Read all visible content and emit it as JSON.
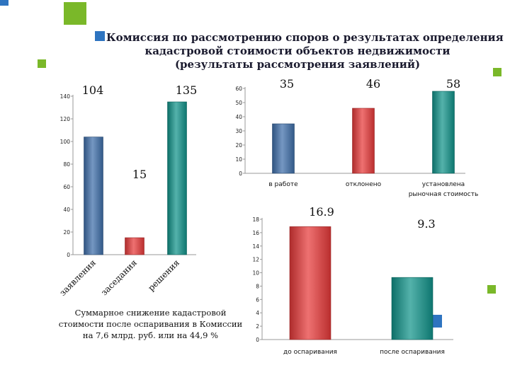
{
  "slide": {
    "title_lines": [
      "Комиссия по рассмотрению споров о результатах определения",
      "кадастровой стоимости объектов недвижимости",
      "(результаты рассмотрения заявлений)"
    ],
    "summary_lines": [
      "Суммарное снижение кадастровой",
      "стоимости после оспаривания в Комиссии",
      "на 7,6 млрд. руб. или на 44,9 %"
    ],
    "colors": {
      "blue": "#3f6faa",
      "red": "#e83a3a",
      "teal": "#11948b",
      "green": "#7ab829",
      "deco_blue": "#2e74c0"
    }
  },
  "chart_data": [
    {
      "type": "bar",
      "categories": [
        "заявления",
        "заседания",
        "решения"
      ],
      "values": [
        104,
        15,
        135
      ],
      "data_labels": [
        "104",
        "15",
        "135"
      ],
      "yticks": [
        "0",
        "20",
        "40",
        "60",
        "80",
        "100",
        "120",
        "140"
      ],
      "ylim": [
        0,
        140
      ],
      "colors": [
        "#3f6faa",
        "#e83a3a",
        "#11948b"
      ],
      "category_label_rotation": "rotated"
    },
    {
      "type": "bar",
      "categories": [
        "в работе",
        "отклонено",
        "установлена рыночная стоимость"
      ],
      "category_lines": [
        [
          "в работе"
        ],
        [
          "отклонено"
        ],
        [
          "установлена",
          "рыночная стоимость"
        ]
      ],
      "values": [
        35,
        46,
        58
      ],
      "data_labels": [
        "35",
        "46",
        "58"
      ],
      "yticks": [
        "0",
        "10",
        "20",
        "30",
        "40",
        "50",
        "60"
      ],
      "ylim": [
        0,
        60
      ],
      "colors": [
        "#3f6faa",
        "#e83a3a",
        "#11948b"
      ]
    },
    {
      "type": "bar",
      "categories": [
        "до оспаривания",
        "после оспаривания"
      ],
      "values": [
        16.9,
        9.3
      ],
      "data_labels": [
        "16.9",
        "9.3"
      ],
      "yticks": [
        "0",
        "2",
        "4",
        "6",
        "8",
        "10",
        "12",
        "14",
        "16",
        "18"
      ],
      "ylim": [
        0,
        18
      ],
      "colors": [
        "#e83a3a",
        "#11948b"
      ]
    }
  ]
}
